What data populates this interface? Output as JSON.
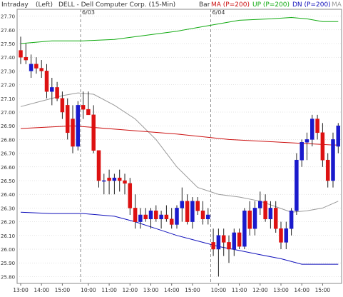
{
  "header": {
    "interval": "Intraday",
    "scale": "(Left)",
    "title": "DELL - Dell Computer Corp. (15-Min)",
    "bar_label": "Bar",
    "ma_label": "MA (P=200)",
    "up_label": "UP (P=200)",
    "dn_label": "DN (P=200)",
    "trailing_label": "MA"
  },
  "colors": {
    "background": "#ffffff",
    "grid": "#c8c8c8",
    "up_candle": "#1a1acc",
    "down_candle": "#dd1111",
    "ma_line": "#cc1111",
    "up_band": "#11aa11",
    "dn_band": "#1111bb",
    "mid_line": "#999999",
    "session_divider": "#777777",
    "header_ma": "#cc1111",
    "header_up": "#11aa11",
    "header_dn": "#1111bb",
    "header_trailing": "#999999"
  },
  "chart_data": {
    "type": "candlestick",
    "ylim": [
      25.75,
      27.75
    ],
    "y_ticks": [
      25.8,
      25.9,
      26.0,
      26.1,
      26.2,
      26.3,
      26.4,
      26.5,
      26.6,
      26.7,
      26.8,
      26.9,
      27.0,
      27.1,
      27.2,
      27.3,
      27.4,
      27.5,
      27.6,
      27.7
    ],
    "y_tick_labels": [
      "25.80",
      "25.90",
      "26.00",
      "26.10",
      "26.20",
      "26.30",
      "26.40",
      "26.50",
      "26.60",
      "26.70",
      "26.80",
      "26.90",
      "27.00",
      "27.10",
      "27.20",
      "27.30",
      "27.40",
      "27.50",
      "27.60",
      "27.70"
    ],
    "x_ticks": [
      {
        "bar": 0,
        "label": "13:00"
      },
      {
        "bar": 4,
        "label": "14:00"
      },
      {
        "bar": 8,
        "label": "15:00"
      },
      {
        "bar": 13,
        "label": "10:00"
      },
      {
        "bar": 17,
        "label": "11:00"
      },
      {
        "bar": 21,
        "label": "12:00"
      },
      {
        "bar": 25,
        "label": "13:00"
      },
      {
        "bar": 29,
        "label": "14:00"
      },
      {
        "bar": 33,
        "label": "15:00"
      },
      {
        "bar": 38,
        "label": "10:00"
      },
      {
        "bar": 42,
        "label": "11:00"
      },
      {
        "bar": 46,
        "label": "12:00"
      },
      {
        "bar": 50,
        "label": "13:00"
      },
      {
        "bar": 54,
        "label": "14:00"
      },
      {
        "bar": 58,
        "label": "15:00"
      }
    ],
    "sessions": [
      {
        "label": "6/03",
        "bar": 11.5
      },
      {
        "label": "6/04",
        "bar": 36.5
      }
    ],
    "candles": [
      {
        "o": 27.45,
        "h": 27.55,
        "l": 27.35,
        "c": 27.4
      },
      {
        "o": 27.4,
        "h": 27.5,
        "l": 27.35,
        "c": 27.38
      },
      {
        "o": 27.3,
        "h": 27.42,
        "l": 27.25,
        "c": 27.35
      },
      {
        "o": 27.35,
        "h": 27.4,
        "l": 27.28,
        "c": 27.32
      },
      {
        "o": 27.32,
        "h": 27.38,
        "l": 27.25,
        "c": 27.3
      },
      {
        "o": 27.3,
        "h": 27.35,
        "l": 27.1,
        "c": 27.15
      },
      {
        "o": 27.15,
        "h": 27.25,
        "l": 27.05,
        "c": 27.18
      },
      {
        "o": 27.18,
        "h": 27.22,
        "l": 27.08,
        "c": 27.1
      },
      {
        "o": 27.1,
        "h": 27.15,
        "l": 26.95,
        "c": 27.0
      },
      {
        "o": 27.05,
        "h": 27.1,
        "l": 26.8,
        "c": 26.85
      },
      {
        "o": 26.95,
        "h": 27.05,
        "l": 26.7,
        "c": 26.75
      },
      {
        "o": 26.75,
        "h": 27.08,
        "l": 26.72,
        "c": 27.05
      },
      {
        "o": 27.05,
        "h": 27.15,
        "l": 26.95,
        "c": 27.02
      },
      {
        "o": 27.02,
        "h": 27.15,
        "l": 26.98,
        "c": 26.98
      },
      {
        "o": 26.98,
        "h": 27.05,
        "l": 26.7,
        "c": 26.72
      },
      {
        "o": 26.72,
        "h": 26.72,
        "l": 26.45,
        "c": 26.5
      },
      {
        "o": 26.5,
        "h": 26.55,
        "l": 26.4,
        "c": 26.5
      },
      {
        "o": 26.52,
        "h": 26.58,
        "l": 26.4,
        "c": 26.5
      },
      {
        "o": 26.5,
        "h": 26.55,
        "l": 26.4,
        "c": 26.52
      },
      {
        "o": 26.52,
        "h": 26.58,
        "l": 26.42,
        "c": 26.5
      },
      {
        "o": 26.5,
        "h": 26.55,
        "l": 26.4,
        "c": 26.48
      },
      {
        "o": 26.48,
        "h": 26.52,
        "l": 26.25,
        "c": 26.3
      },
      {
        "o": 26.3,
        "h": 26.4,
        "l": 26.15,
        "c": 26.2
      },
      {
        "o": 26.2,
        "h": 26.3,
        "l": 26.15,
        "c": 26.25
      },
      {
        "o": 26.25,
        "h": 26.3,
        "l": 26.2,
        "c": 26.22
      },
      {
        "o": 26.22,
        "h": 26.3,
        "l": 26.15,
        "c": 26.28
      },
      {
        "o": 26.28,
        "h": 26.32,
        "l": 26.2,
        "c": 26.22
      },
      {
        "o": 26.22,
        "h": 26.28,
        "l": 26.15,
        "c": 26.25
      },
      {
        "o": 26.25,
        "h": 26.32,
        "l": 26.2,
        "c": 26.22
      },
      {
        "o": 26.22,
        "h": 26.3,
        "l": 26.15,
        "c": 26.18
      },
      {
        "o": 26.18,
        "h": 26.32,
        "l": 26.15,
        "c": 26.3
      },
      {
        "o": 26.3,
        "h": 26.45,
        "l": 26.2,
        "c": 26.35
      },
      {
        "o": 26.35,
        "h": 26.4,
        "l": 26.18,
        "c": 26.2
      },
      {
        "o": 26.2,
        "h": 26.38,
        "l": 26.15,
        "c": 26.35
      },
      {
        "o": 26.35,
        "h": 26.38,
        "l": 26.25,
        "c": 26.28
      },
      {
        "o": 26.28,
        "h": 26.35,
        "l": 26.18,
        "c": 26.22
      },
      {
        "o": 26.22,
        "h": 26.3,
        "l": 26.18,
        "c": 26.25
      },
      {
        "o": 26.05,
        "h": 26.15,
        "l": 25.95,
        "c": 26.0
      },
      {
        "o": 26.0,
        "h": 26.15,
        "l": 25.8,
        "c": 26.1
      },
      {
        "o": 26.1,
        "h": 26.15,
        "l": 25.95,
        "c": 26.05
      },
      {
        "o": 26.05,
        "h": 26.1,
        "l": 25.9,
        "c": 26.0
      },
      {
        "o": 26.0,
        "h": 26.15,
        "l": 25.95,
        "c": 26.12
      },
      {
        "o": 26.12,
        "h": 26.15,
        "l": 26.0,
        "c": 26.02
      },
      {
        "o": 26.02,
        "h": 26.3,
        "l": 26.0,
        "c": 26.28
      },
      {
        "o": 26.28,
        "h": 26.35,
        "l": 26.1,
        "c": 26.15
      },
      {
        "o": 26.15,
        "h": 26.35,
        "l": 26.1,
        "c": 26.3
      },
      {
        "o": 26.3,
        "h": 26.42,
        "l": 26.25,
        "c": 26.35
      },
      {
        "o": 26.35,
        "h": 26.4,
        "l": 26.2,
        "c": 26.22
      },
      {
        "o": 26.22,
        "h": 26.35,
        "l": 26.15,
        "c": 26.3
      },
      {
        "o": 26.3,
        "h": 26.35,
        "l": 26.12,
        "c": 26.15
      },
      {
        "o": 26.15,
        "h": 26.2,
        "l": 26.0,
        "c": 26.05
      },
      {
        "o": 26.05,
        "h": 26.2,
        "l": 26.0,
        "c": 26.15
      },
      {
        "o": 26.15,
        "h": 26.3,
        "l": 26.1,
        "c": 26.28
      },
      {
        "o": 26.28,
        "h": 26.7,
        "l": 26.25,
        "c": 26.65
      },
      {
        "o": 26.65,
        "h": 26.8,
        "l": 26.6,
        "c": 26.78
      },
      {
        "o": 26.78,
        "h": 26.85,
        "l": 26.65,
        "c": 26.8
      },
      {
        "o": 26.8,
        "h": 26.98,
        "l": 26.75,
        "c": 26.95
      },
      {
        "o": 26.95,
        "h": 26.98,
        "l": 26.8,
        "c": 26.85
      },
      {
        "o": 26.85,
        "h": 26.92,
        "l": 26.6,
        "c": 26.65
      },
      {
        "o": 26.65,
        "h": 26.7,
        "l": 26.45,
        "c": 26.5
      },
      {
        "o": 26.5,
        "h": 26.85,
        "l": 26.45,
        "c": 26.8
      },
      {
        "o": 26.75,
        "h": 26.92,
        "l": 26.7,
        "c": 26.9
      }
    ],
    "overlays": {
      "ma": [
        [
          0,
          26.88
        ],
        [
          10,
          26.9
        ],
        [
          20,
          26.87
        ],
        [
          30,
          26.84
        ],
        [
          40,
          26.8
        ],
        [
          50,
          26.78
        ],
        [
          60,
          26.76
        ],
        [
          61,
          26.76
        ]
      ],
      "up": [
        [
          0,
          27.5
        ],
        [
          6,
          27.52
        ],
        [
          12,
          27.52
        ],
        [
          18,
          27.53
        ],
        [
          24,
          27.56
        ],
        [
          30,
          27.59
        ],
        [
          36,
          27.63
        ],
        [
          42,
          27.67
        ],
        [
          48,
          27.68
        ],
        [
          52,
          27.69
        ],
        [
          55,
          27.68
        ],
        [
          58,
          27.66
        ],
        [
          61,
          27.66
        ]
      ],
      "dn": [
        [
          0,
          26.27
        ],
        [
          6,
          26.26
        ],
        [
          12,
          26.26
        ],
        [
          18,
          26.24
        ],
        [
          22,
          26.2
        ],
        [
          26,
          26.15
        ],
        [
          30,
          26.1
        ],
        [
          34,
          26.06
        ],
        [
          38,
          26.02
        ],
        [
          42,
          25.99
        ],
        [
          46,
          25.96
        ],
        [
          50,
          25.93
        ],
        [
          54,
          25.89
        ],
        [
          58,
          25.89
        ],
        [
          61,
          25.89
        ]
      ],
      "mid": [
        [
          0,
          27.04
        ],
        [
          4,
          27.08
        ],
        [
          8,
          27.12
        ],
        [
          11,
          27.14
        ],
        [
          14,
          27.13
        ],
        [
          18,
          27.05
        ],
        [
          22,
          26.95
        ],
        [
          26,
          26.8
        ],
        [
          30,
          26.6
        ],
        [
          34,
          26.45
        ],
        [
          38,
          26.4
        ],
        [
          42,
          26.38
        ],
        [
          46,
          26.35
        ],
        [
          49,
          26.31
        ],
        [
          52,
          26.27
        ],
        [
          55,
          26.28
        ],
        [
          58,
          26.3
        ],
        [
          61,
          26.35
        ]
      ]
    }
  }
}
